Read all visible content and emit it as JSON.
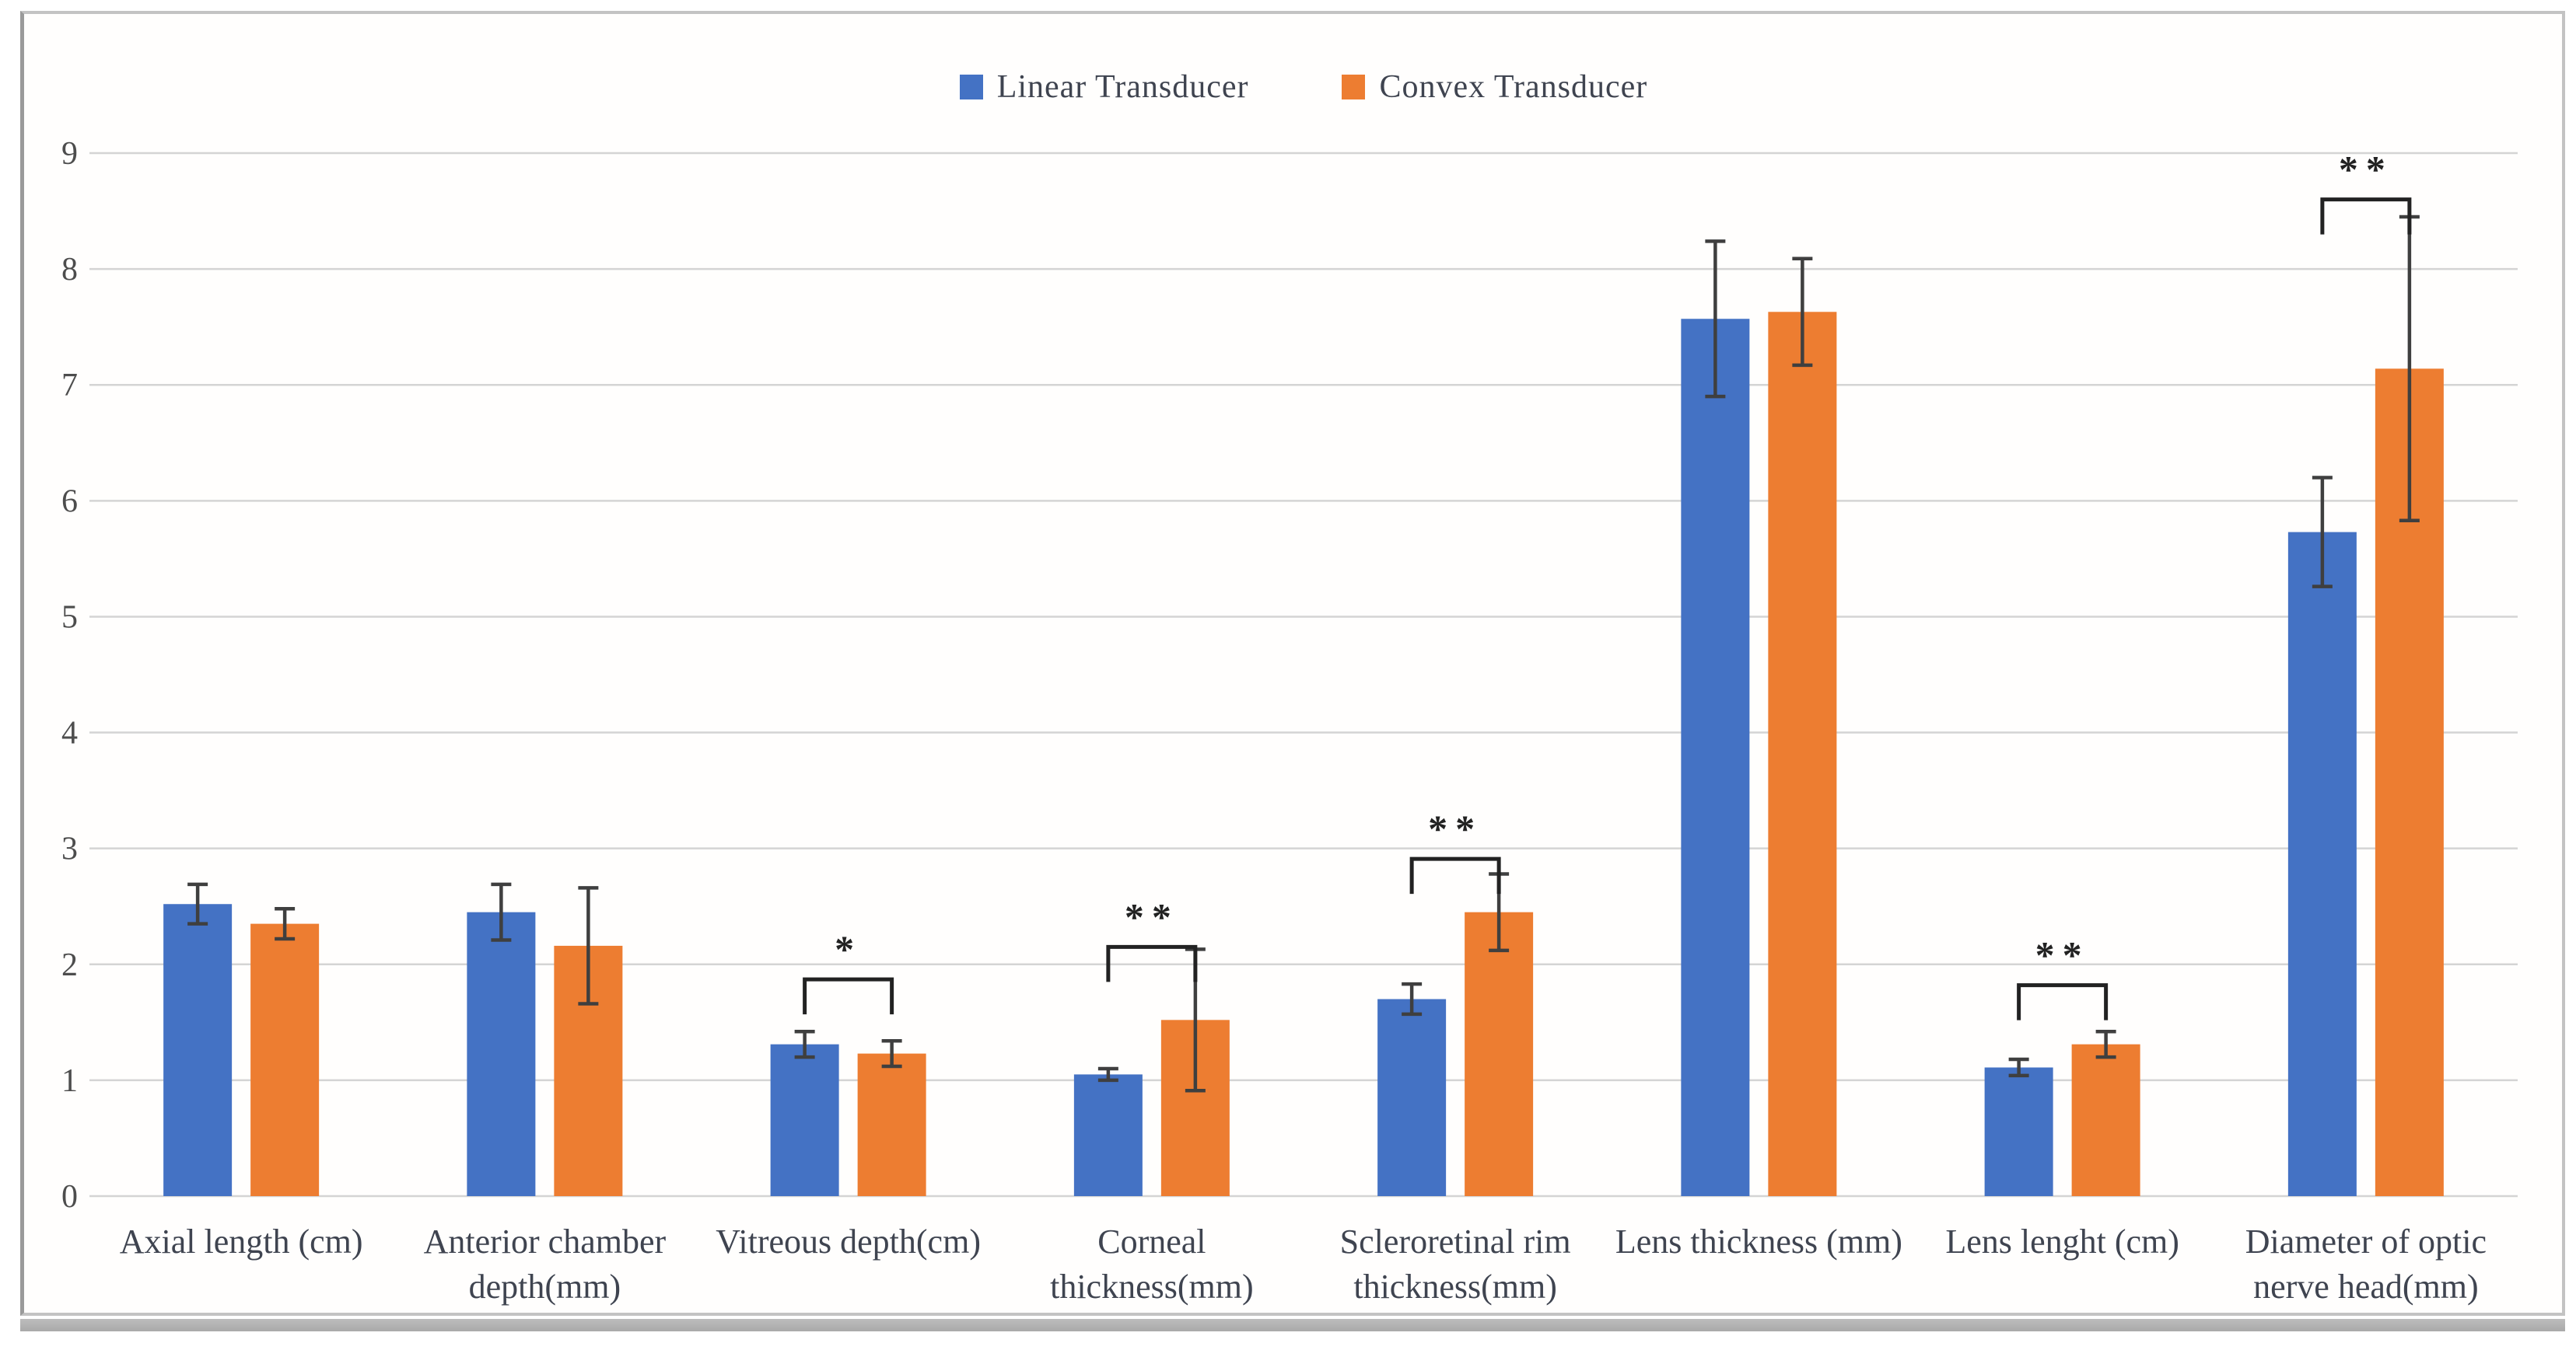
{
  "figure": {
    "kind": "grouped-bar-chart-with-error-bars"
  },
  "chart_data": {
    "type": "bar",
    "title": "",
    "xlabel": "",
    "ylabel": "",
    "grid": true,
    "legend_position": "top-center",
    "y_axis": {
      "min": 0,
      "max": 9,
      "step": 1,
      "tick_labels": [
        "0",
        "1",
        "2",
        "3",
        "4",
        "5",
        "6",
        "7",
        "8",
        "9"
      ]
    },
    "categories": [
      "Axial length (cm)",
      "Anterior chamber depth(mm)",
      "Vitreous depth(cm)",
      "Corneal thickness(mm)",
      "Scleroretinal rim thickness(mm)",
      "Lens thickness (mm)",
      "Lens lenght (cm)",
      "Diameter of optic nerve head(mm)"
    ],
    "category_label_lines": [
      [
        "Axial length (cm)"
      ],
      [
        "Anterior chamber",
        "depth(mm)"
      ],
      [
        "Vitreous depth(cm)"
      ],
      [
        "Corneal",
        "thickness(mm)"
      ],
      [
        "Scleroretinal rim",
        "thickness(mm)"
      ],
      [
        "Lens thickness (mm)"
      ],
      [
        "Lens lenght (cm)"
      ],
      [
        "Diameter of optic",
        "nerve head(mm)"
      ]
    ],
    "series": [
      {
        "name": "Linear Transducer",
        "color": "#4472c4",
        "values": [
          2.52,
          2.45,
          1.31,
          1.05,
          1.7,
          7.57,
          1.11,
          5.73
        ],
        "errors": [
          0.17,
          0.24,
          0.11,
          0.05,
          0.13,
          0.67,
          0.07,
          0.47
        ]
      },
      {
        "name": "Convex Transducer",
        "color": "#ed7d31",
        "values": [
          2.35,
          2.16,
          1.23,
          1.52,
          2.45,
          7.63,
          1.31,
          7.14
        ],
        "errors": [
          0.13,
          0.5,
          0.11,
          0.61,
          0.33,
          0.46,
          0.11,
          1.31
        ]
      }
    ],
    "significance": [
      {
        "category_index": 2,
        "stars": "*",
        "bracket_value": 1.87
      },
      {
        "category_index": 3,
        "stars": "**",
        "bracket_value": 2.15
      },
      {
        "category_index": 4,
        "stars": "**",
        "bracket_value": 2.91
      },
      {
        "category_index": 6,
        "stars": "**",
        "bracket_value": 1.82
      },
      {
        "category_index": 7,
        "stars": "**",
        "bracket_value": 8.6
      }
    ],
    "style": {
      "gridline_color": "#d4d4d4",
      "error_bar_color": "#3f3f3f",
      "bracket_color": "#222222",
      "tick_label_color": "#4d4d4d",
      "category_label_color": "#3f4450"
    }
  }
}
